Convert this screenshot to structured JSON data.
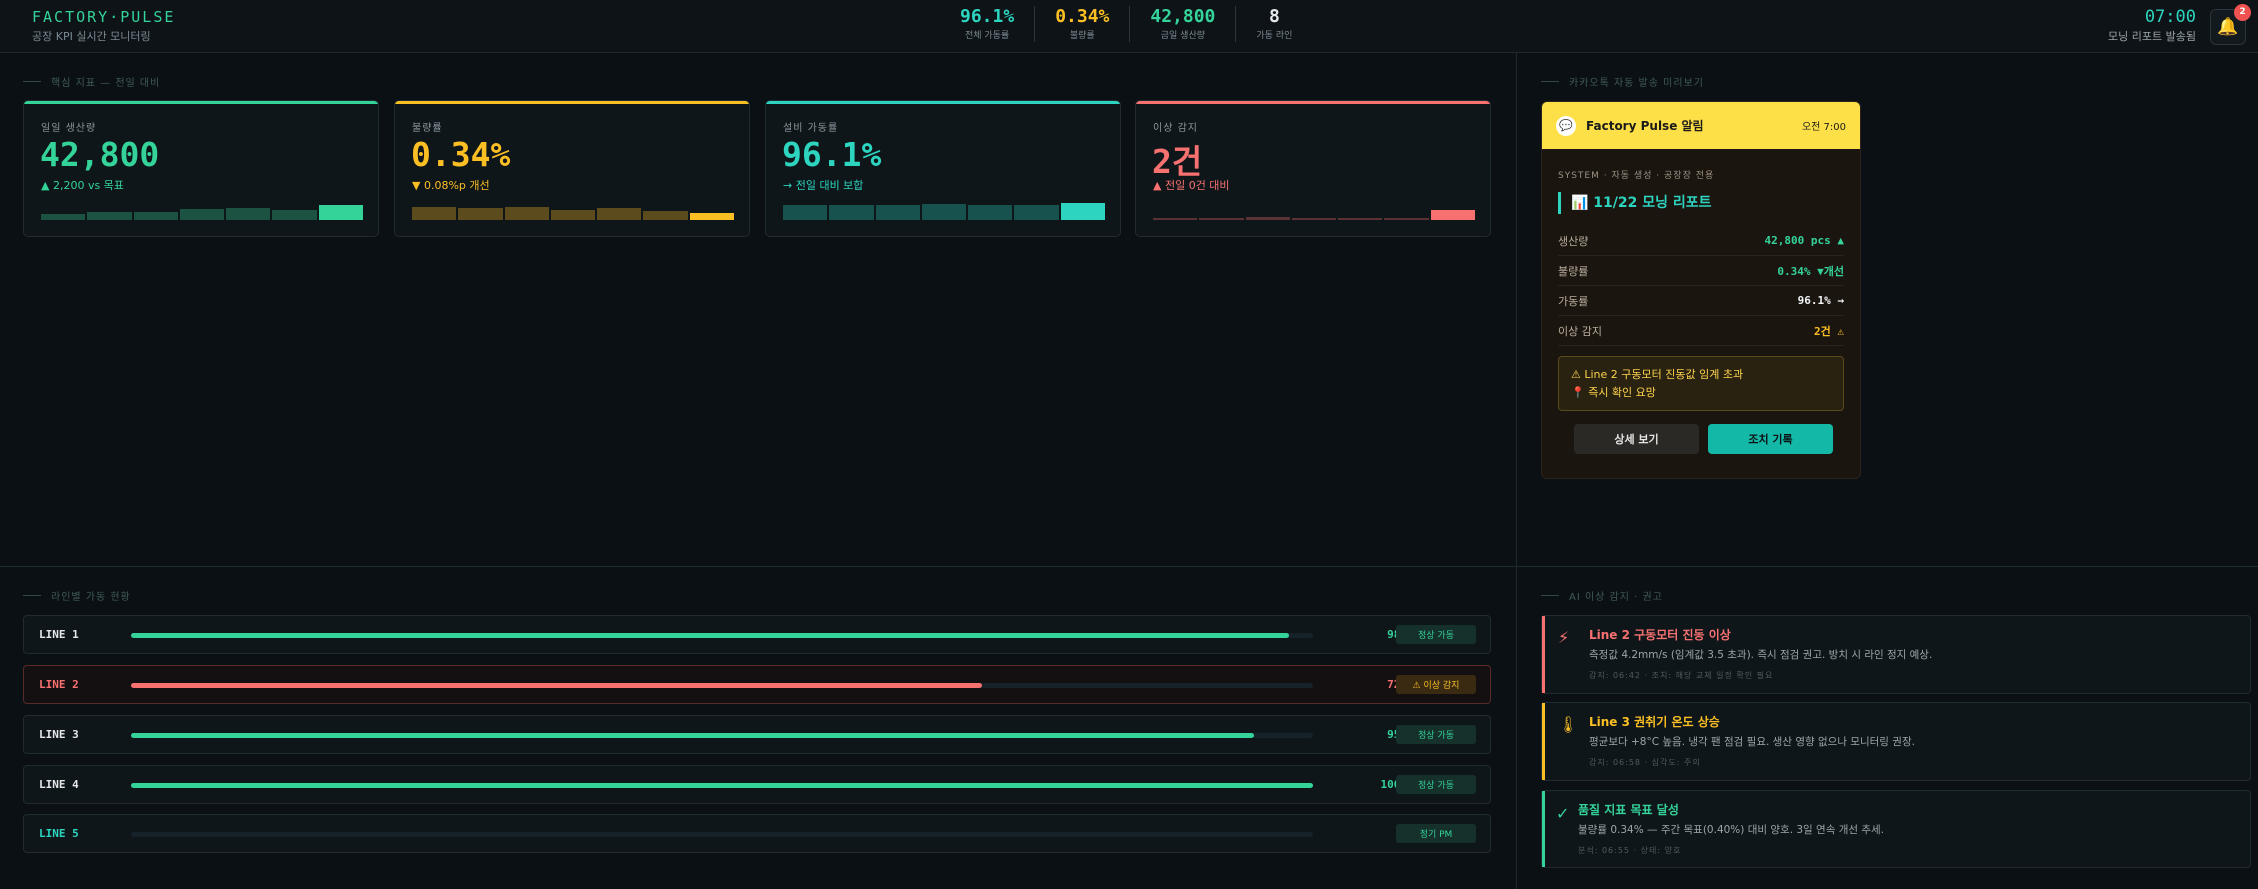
{
  "header": {
    "brand_title": "FACTORY·PULSE",
    "brand_sub": "공장 KPI 실시간 모니터링",
    "kpis": [
      {
        "value": "96.1%",
        "label": "전체 가동률",
        "color": "#2dd4bf"
      },
      {
        "value": "0.34%",
        "label": "불량률",
        "color": "#fbbf24"
      },
      {
        "value": "42,800",
        "label": "금일 생산량",
        "color": "#34d399"
      },
      {
        "value": "8",
        "label": "가동 라인",
        "color": "#e5e7eb"
      }
    ],
    "time": "07:00",
    "time_sub": "모닝 리포트 발송됨",
    "notification_count": "2"
  },
  "metrics": {
    "section_label": "핵심 지표 — 전일 대비",
    "cards": [
      {
        "label": "일일 생산량",
        "value": "42,800",
        "sub": "▲ 2,200 vs 목표",
        "accent": "#34d399",
        "spark": [
          0.25,
          0.35,
          0.35,
          0.45,
          0.5,
          0.42,
          0.62
        ]
      },
      {
        "label": "불량률",
        "value": "0.34%",
        "sub": "▼ 0.08%p 개선",
        "accent": "#fbbf24",
        "spark": [
          0.55,
          0.48,
          0.55,
          0.42,
          0.5,
          0.38,
          0.28
        ]
      },
      {
        "label": "설비 가동률",
        "value": "96.1%",
        "sub": "→ 전일 대비 보합",
        "accent": "#2dd4bf",
        "spark": [
          0.62,
          0.62,
          0.62,
          0.66,
          0.62,
          0.62,
          0.7
        ]
      },
      {
        "label": "이상 감지",
        "value": "2건",
        "sub": "▲ 전일 0건 대비",
        "accent": "#f87171",
        "spark": [
          0.08,
          0.08,
          0.12,
          0.08,
          0.08,
          0.08,
          0.42
        ]
      }
    ]
  },
  "notification": {
    "section_label": "카카오톡 자동 발송 미리보기",
    "title": "Factory Pulse 알림",
    "time": "오전 7:00",
    "system": "SYSTEM · 자동 생성 · 공장장 전용",
    "report_title": "📊 11/22 모닝 리포트",
    "rows": [
      {
        "key": "생산량",
        "value": "42,800 pcs ▲",
        "color": "#34d399"
      },
      {
        "key": "불량률",
        "value": "0.34% ▼개선",
        "color": "#34d399"
      },
      {
        "key": "가동률",
        "value": "96.1% →",
        "color": "#f3f4f6"
      },
      {
        "key": "이상 감지",
        "value": "2건 ⚠",
        "color": "#fbbf24"
      }
    ],
    "warning_line1": "⚠ Line 2 구동모터 진동값 임계 초과",
    "warning_line2": "📍 즉시 확인 요망",
    "btn_detail": "상세 보기",
    "btn_action": "조치 기록"
  },
  "lines": {
    "section_label": "라인별 가동 현황",
    "items": [
      {
        "name": "LINE 1",
        "pct": "98%",
        "fill": 0.98,
        "badge": "정상 가동",
        "status": "ok"
      },
      {
        "name": "LINE 2",
        "pct": "72%",
        "fill": 0.72,
        "badge": "⚠ 이상 감지",
        "status": "alert"
      },
      {
        "name": "LINE 3",
        "pct": "95%",
        "fill": 0.95,
        "badge": "정상 가동",
        "status": "ok"
      },
      {
        "name": "LINE 4",
        "pct": "100%",
        "fill": 1.0,
        "badge": "정상 가동",
        "status": "ok"
      },
      {
        "name": "LINE 5",
        "pct": "—",
        "fill": 0,
        "badge": "정기 PM",
        "status": "pm"
      }
    ]
  },
  "alerts": {
    "section_label": "AI 이상 감지 · 권고",
    "items": [
      {
        "icon": "⚡",
        "icon_name": "lightning-icon",
        "title": "Line 2 구동모터 진동 이상",
        "desc": "측정값 4.2mm/s (임계값 3.5 초과). 즉시 점검 권고. 방치 시 라인 정지 예상.",
        "meta": "감지: 06:42 · 조치: 해당 교체 일정 확인 필요",
        "color": "#f87171"
      },
      {
        "icon": "🌡",
        "icon_name": "thermometer-icon",
        "title": "Line 3 권취기 온도 상승",
        "desc": "평균보다 +8°C 높음. 냉각 팬 점검 필요. 생산 영향 없으나 모니터링 권장.",
        "meta": "감지: 06:58 · 심각도: 주의",
        "color": "#fbbf24"
      },
      {
        "icon": "✓",
        "icon_name": "check-icon",
        "title": "품질 지표 목표 달성",
        "desc": "불량률 0.34% — 주간 목표(0.40%) 대비 양호. 3일 연속 개선 추세.",
        "meta": "분석: 06:55 · 상태: 양호",
        "color": "#34d399"
      }
    ]
  }
}
